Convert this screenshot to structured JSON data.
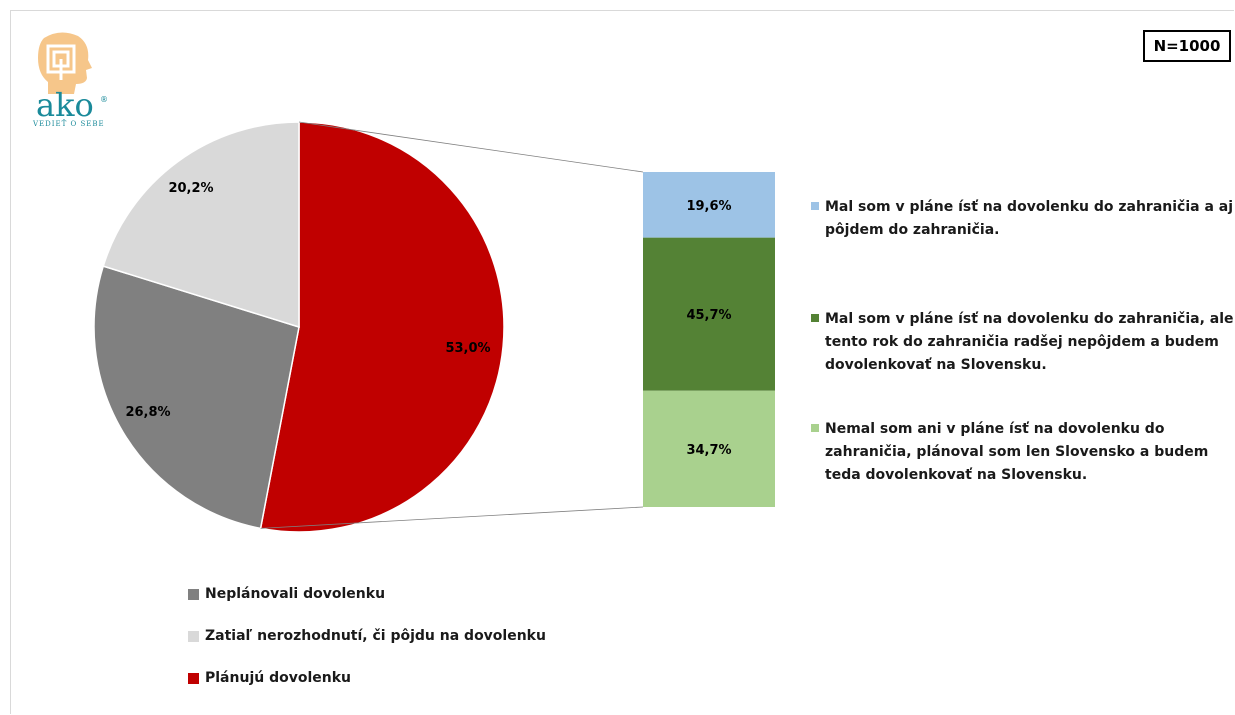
{
  "sample_size_label": "N=1000",
  "logo": {
    "wordmark": "ako",
    "tagline": "VEDIEŤ O SEBE",
    "registered": "®"
  },
  "chart_data": [
    {
      "type": "pie",
      "categories": [
        "Neplánovali dovolenku",
        "Zatiaľ nerozhodnutí, či pôjdu na dovolenku",
        "Plánujú dovolenku"
      ],
      "values": [
        26.8,
        20.2,
        53.0
      ],
      "value_labels": [
        "26,8%",
        "20,2%",
        "53,0%"
      ],
      "colors": [
        "#808080",
        "#d9d9d9",
        "#c00000"
      ],
      "legend": "bottom-left"
    },
    {
      "type": "bar",
      "stacked": true,
      "exploded_from": "Plánujú dovolenku",
      "categories": [
        "Mal som v pláne ísť na dovolenku do zahraničia a aj pôjdem do zahraničia.",
        "Mal som v pláne ísť na dovolenku do zahraničia, ale tento rok do zahraničia radšej nepôjdem a budem dovolenkovať na Slovensku.",
        "Nemal som ani v pláne ísť na dovolenku do zahraničia, plánoval som len Slovensko a budem teda dovolenkovať na Slovensku."
      ],
      "values": [
        19.6,
        45.7,
        34.7
      ],
      "value_labels": [
        "19,6%",
        "45,7%",
        "34,7%"
      ],
      "colors": [
        "#9dc3e6",
        "#548235",
        "#a9d18e"
      ],
      "legend": "right"
    }
  ]
}
